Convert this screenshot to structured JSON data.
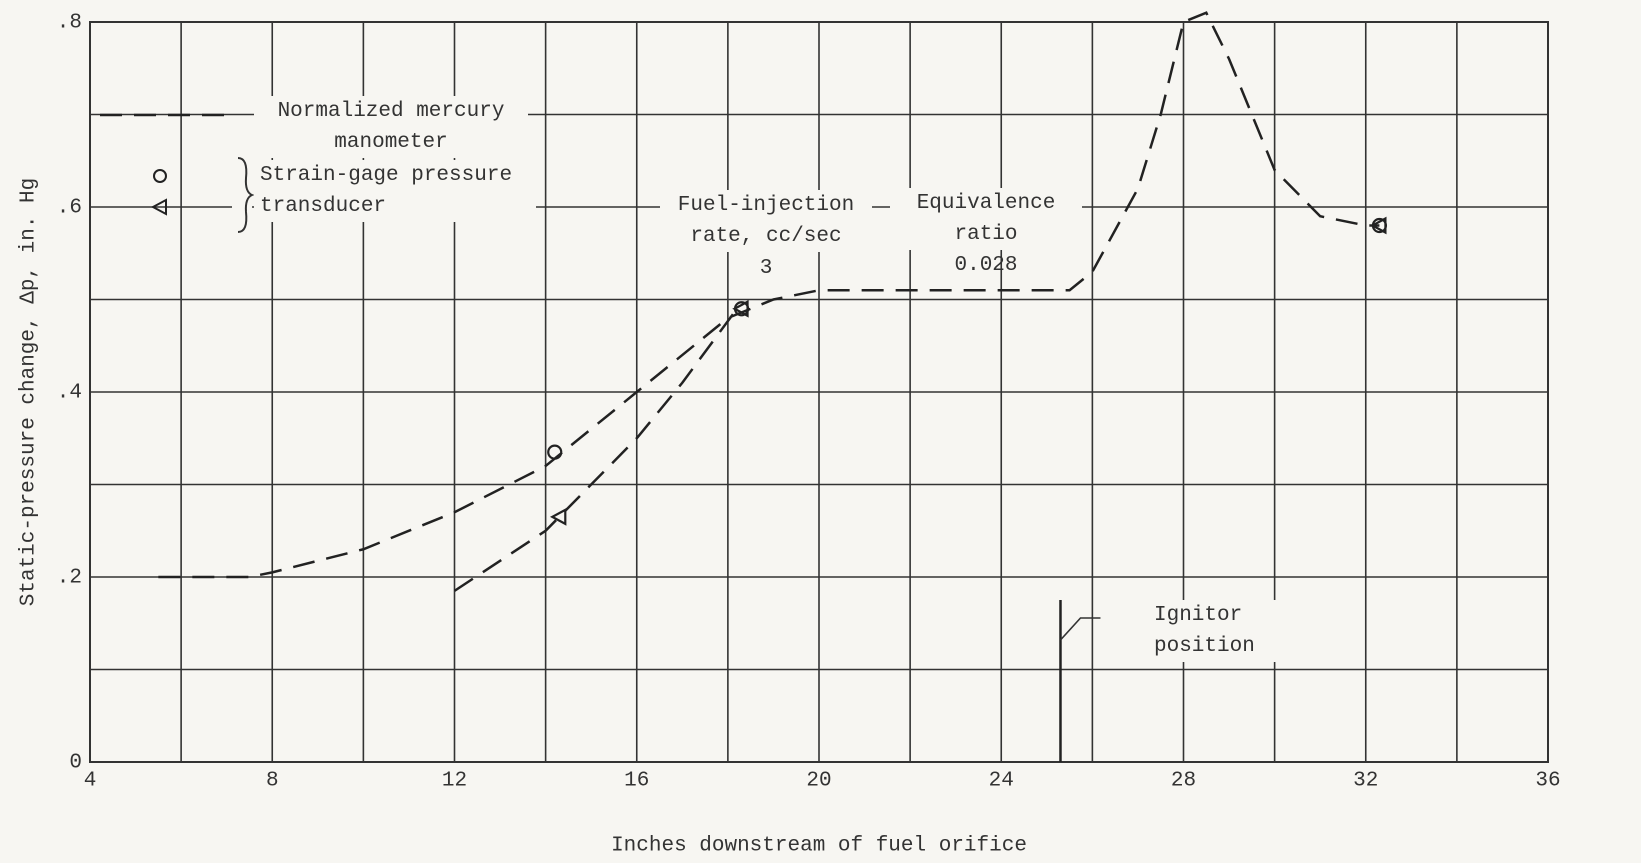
{
  "chart_data": {
    "type": "line",
    "xlabel": "Inches downstream of fuel orifice",
    "ylabel": "Static-pressure change, Δp, in. Hg",
    "xlim": [
      4,
      36
    ],
    "ylim": [
      0,
      0.8
    ],
    "xticks": [
      4,
      8,
      12,
      16,
      20,
      24,
      28,
      32,
      36
    ],
    "yticks": [
      0,
      {
        "value": 0.2,
        "label": ".2"
      },
      {
        "value": 0.4,
        "label": ".4"
      },
      {
        "value": 0.6,
        "label": ".6"
      },
      {
        "value": 0.8,
        "label": ".8"
      }
    ],
    "minor_xticks": [
      6,
      10,
      14,
      18,
      22,
      26,
      30,
      34
    ],
    "minor_yticks": [
      0.1,
      0.3,
      0.5,
      0.7
    ],
    "grid": true,
    "series": [
      {
        "name": "Normalized mercury manometer",
        "color": "#222",
        "marker": "dash",
        "x": [
          5.5,
          7.5,
          8,
          10,
          12,
          14,
          16,
          18,
          19,
          20,
          22,
          24,
          25.5,
          26,
          27,
          27.5,
          28,
          28.5,
          29,
          30,
          31,
          32,
          32.3,
          null,
          12,
          14,
          16,
          17,
          18.2
        ],
        "values": [
          0.2,
          0.2,
          0.205,
          0.23,
          0.27,
          0.32,
          0.4,
          0.48,
          0.5,
          0.51,
          0.51,
          0.51,
          0.51,
          0.53,
          0.62,
          0.7,
          0.8,
          0.81,
          0.76,
          0.64,
          0.59,
          0.58,
          0.58,
          null,
          0.185,
          0.25,
          0.35,
          0.41,
          0.49
        ]
      },
      {
        "name": "Strain-gage pressure transducer",
        "color": "#222",
        "marker": "circle",
        "x": [
          14.2,
          18.3,
          32.3
        ],
        "values": [
          0.335,
          0.49,
          0.58
        ]
      },
      {
        "color": "#222",
        "marker": "triangle",
        "x": [
          14.3,
          18.3,
          32.3
        ],
        "values": [
          0.265,
          0.49,
          0.58
        ]
      }
    ],
    "table": {
      "headers": [
        "Fuel-injection rate, cc/sec",
        "Equivalence ratio"
      ],
      "values": [
        3,
        0.028
      ]
    },
    "annotations": [
      {
        "text": "Ignitor position",
        "x": 25.3
      }
    ]
  }
}
